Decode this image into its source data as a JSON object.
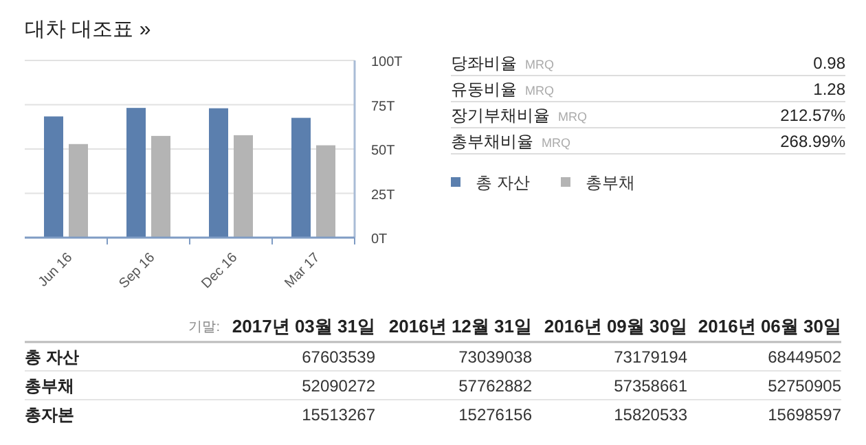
{
  "chart_data": [
    {
      "type": "bar",
      "title": "대차 대조표 »",
      "categories": [
        "Jun 16",
        "Sep 16",
        "Dec 16",
        "Mar 17"
      ],
      "series": [
        {
          "name": "총 자산",
          "color": "#5b7fae",
          "values": [
            68.4,
            73.2,
            73.0,
            67.6
          ]
        },
        {
          "name": "총부채",
          "color": "#b4b4b4",
          "values": [
            52.8,
            57.4,
            57.8,
            52.1
          ]
        }
      ],
      "ylim": [
        0,
        100
      ],
      "yticks": [
        {
          "value": 0,
          "label": "0T"
        },
        {
          "value": 25,
          "label": "25T"
        },
        {
          "value": 50,
          "label": "50T"
        },
        {
          "value": 75,
          "label": "75T"
        },
        {
          "value": 100,
          "label": "100T"
        }
      ],
      "grid": "y",
      "legend": "right"
    },
    {
      "type": "other",
      "categories": [
        "당좌비율",
        "유동비율",
        "장기부채비율",
        "총부채비율"
      ],
      "value_labels": [
        "0.98",
        "1.28",
        "212.57%",
        "268.99%"
      ],
      "annotations": [
        "MRQ",
        "MRQ",
        "MRQ",
        "MRQ"
      ]
    },
    {
      "type": "other",
      "annotations": [
        "기말:"
      ],
      "categories": [
        "2017년 03월 31일",
        "2016년 12월 31일",
        "2016년 09월 30일",
        "2016년 06월 30일"
      ],
      "series": [
        {
          "name": "총 자산",
          "values": [
            67603539,
            73039038,
            73179194,
            68449502
          ],
          "value_labels": [
            "67603539",
            "73039038",
            "73179194",
            "68449502"
          ]
        },
        {
          "name": "총부채",
          "values": [
            52090272,
            57762882,
            57358661,
            52750905
          ],
          "value_labels": [
            "52090272",
            "57762882",
            "57358661",
            "52750905"
          ]
        },
        {
          "name": "총자본",
          "values": [
            15513267,
            15276156,
            15820533,
            15698597
          ],
          "value_labels": [
            "15513267",
            "15276156",
            "15820533",
            "15698597"
          ]
        }
      ]
    }
  ]
}
